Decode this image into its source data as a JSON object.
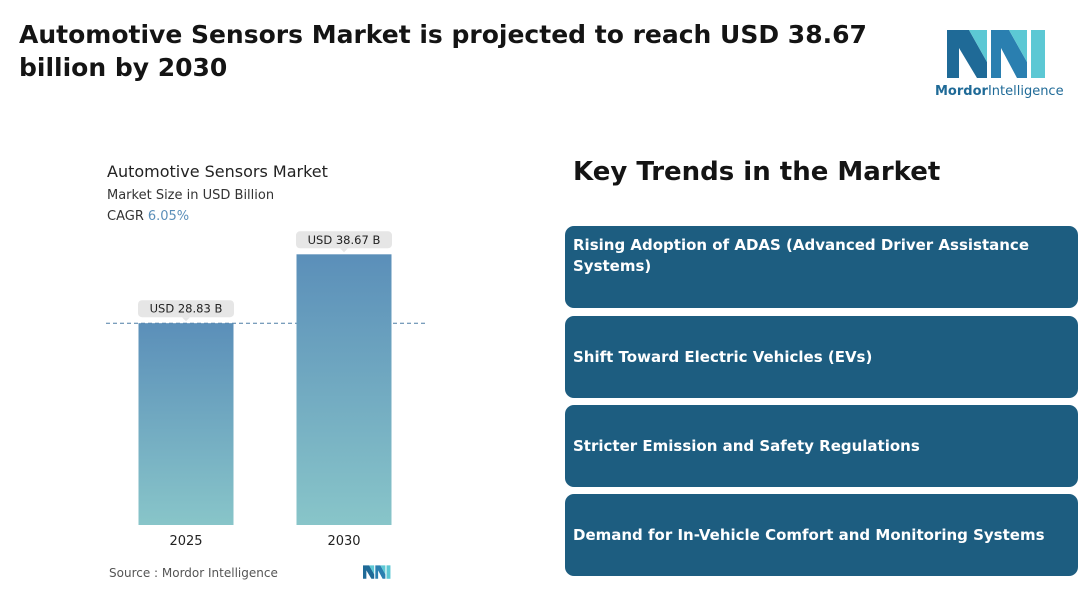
{
  "headline": "Automotive Sensors Market is projected to reach USD 38.67 billion by 2030",
  "brand": {
    "name_bold": "Mordor",
    "name_light": "Intelligence",
    "color": "#1f6a97",
    "accent": "#5cc8d4"
  },
  "chart_data": {
    "type": "bar",
    "title": "Automotive Sensors Market",
    "subtitle": "Market Size in USD Billion",
    "cagr_label": "CAGR",
    "cagr_value": "6.05%",
    "categories": [
      "2025",
      "2030"
    ],
    "values": [
      28.83,
      38.67
    ],
    "value_labels": [
      "USD 28.83 B",
      "USD 38.67 B"
    ],
    "ylim": [
      0,
      40
    ],
    "reference_line_value": 28.83,
    "bar_color_top": "#5b8fb9",
    "bar_color_bottom": "#88c5c9",
    "grid": false,
    "legend": "none"
  },
  "source": "Source :  Mordor Intelligence",
  "trends": {
    "title": "Key Trends in the Market",
    "items": [
      "Rising Adoption of ADAS (Advanced Driver Assistance Systems)",
      "Shift Toward Electric Vehicles (EVs)",
      "Stricter Emission and Safety Regulations",
      "Demand for In-Vehicle Comfort and Monitoring Systems"
    ],
    "box_color": "#1d5d80"
  }
}
